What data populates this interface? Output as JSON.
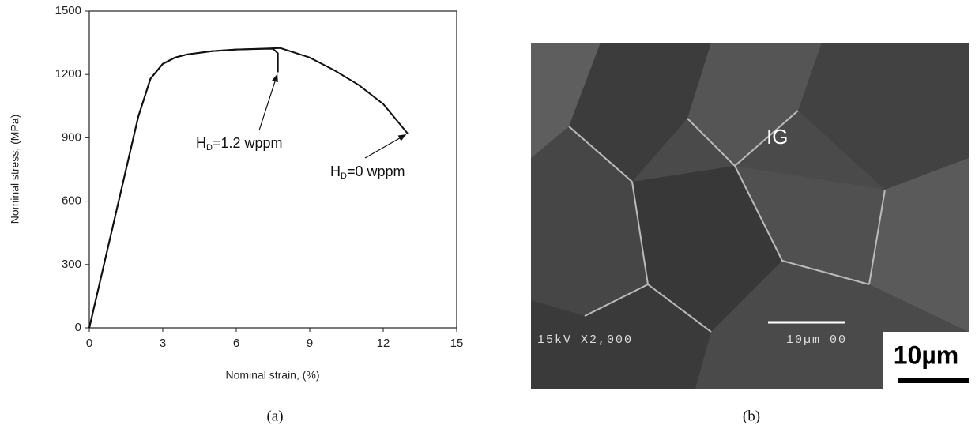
{
  "chart_data": {
    "type": "line",
    "xlabel": "Nominal strain, (%)",
    "ylabel": "Nominal stress, (MPa)",
    "xlim": [
      0,
      15
    ],
    "xticks": [
      0,
      3,
      6,
      9,
      12,
      15
    ],
    "ylim": [
      0,
      1500
    ],
    "yticks": [
      0,
      300,
      600,
      900,
      1200,
      1500
    ],
    "caption": "(a)",
    "series": [
      {
        "label_parts": [
          "H",
          "D",
          "=1.2 wppm"
        ],
        "color": "#111111",
        "x": [
          0,
          0.5,
          1,
          1.5,
          2,
          2.5,
          3,
          3.5,
          4,
          5,
          6,
          7,
          7.5,
          7.7,
          7.7
        ],
        "values": [
          0,
          250,
          500,
          750,
          1000,
          1180,
          1250,
          1280,
          1295,
          1310,
          1318,
          1321,
          1322,
          1300,
          1210
        ]
      },
      {
        "label_parts": [
          "H",
          "D",
          "=0 wppm"
        ],
        "color": "#111111",
        "x": [
          0,
          0.5,
          1,
          1.5,
          2,
          2.5,
          3,
          3.5,
          4,
          5,
          6,
          7,
          7.8,
          9,
          10,
          11,
          12,
          13
        ],
        "values": [
          0,
          250,
          500,
          750,
          1000,
          1180,
          1250,
          1280,
          1295,
          1310,
          1318,
          1322,
          1325,
          1280,
          1220,
          1150,
          1060,
          920
        ]
      }
    ]
  },
  "image": {
    "caption": "(b)",
    "label": "IG",
    "info": "15kV X2,000",
    "bar_text": "10µm 00",
    "scale": "10µm"
  }
}
